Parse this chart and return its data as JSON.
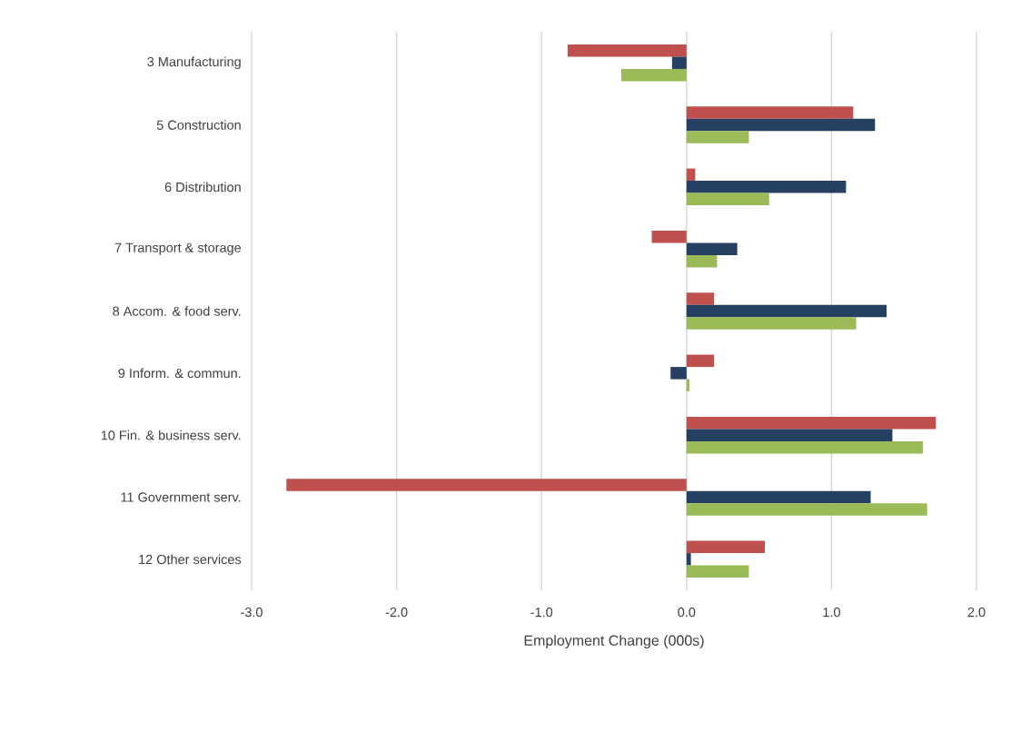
{
  "chart_data": {
    "type": "bar",
    "orientation": "horizontal",
    "xlabel": "Employment Change (000s)",
    "categories": [
      "3 Manufacturing",
      "5 Construction",
      "6 Distribution",
      "7 Transport & storage",
      "8 Accom. & food serv.",
      "9 Inform. & commun.",
      "10 Fin. & business serv.",
      "11 Government serv.",
      "12 Other services"
    ],
    "series": [
      {
        "color": "#c0504d",
        "values": [
          -0.82,
          1.15,
          0.06,
          -0.24,
          0.19,
          0.19,
          1.72,
          -2.76,
          0.54
        ]
      },
      {
        "color": "#254061",
        "values": [
          -0.1,
          1.3,
          1.1,
          0.35,
          1.38,
          -0.11,
          1.42,
          1.27,
          0.03
        ]
      },
      {
        "color": "#9bbb59",
        "values": [
          -0.45,
          0.43,
          0.57,
          0.21,
          1.17,
          0.02,
          1.63,
          1.66,
          0.43
        ]
      }
    ],
    "xlim": [
      -3,
      2
    ],
    "xticks": [
      {
        "value": -3,
        "label": "-3.0"
      },
      {
        "value": -2,
        "label": "-2.0"
      },
      {
        "value": -1,
        "label": "-1.0"
      },
      {
        "value": 0,
        "label": "0.0"
      },
      {
        "value": 1,
        "label": "1.0"
      },
      {
        "value": 2,
        "label": "2.0"
      }
    ],
    "grid": "x"
  }
}
